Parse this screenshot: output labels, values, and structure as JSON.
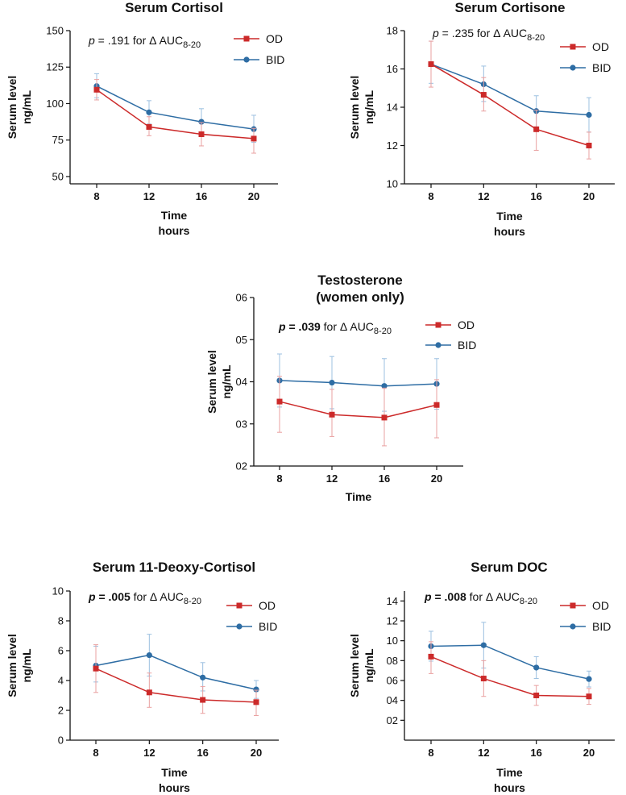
{
  "colors": {
    "OD": "#cc2a2a",
    "BID": "#2e6da4",
    "OD_err": "#e9a0a0",
    "BID_err": "#9cc0e0"
  },
  "chart_data": [
    {
      "id": "cortisol",
      "type": "line",
      "title": "Serum Cortisol",
      "title2": "",
      "ylabel": [
        "Serum level",
        "ng/mL"
      ],
      "ylabel_style": [
        "bold",
        "bold"
      ],
      "xlabel": [
        "Time",
        "hours"
      ],
      "x": [
        8,
        12,
        16,
        20
      ],
      "xticks": [
        "8",
        "12",
        "16",
        "20"
      ],
      "ylim": [
        45,
        150
      ],
      "yticks": [
        50,
        75,
        100,
        125,
        150
      ],
      "ytick_labels": [
        "50",
        "75",
        "100",
        "125",
        "150"
      ],
      "annotation": {
        "p": "p",
        "value": " = .191",
        "rest": " for Δ AUC",
        "sub": "8-20",
        "bold": false
      },
      "series": [
        {
          "name": "OD",
          "values": [
            109.5,
            84,
            79,
            76
          ],
          "err_up": [
            7,
            7,
            8,
            7
          ],
          "err_down": [
            7,
            6,
            8,
            10
          ]
        },
        {
          "name": "BID",
          "values": [
            112,
            94,
            87.5,
            82.5
          ],
          "err_up": [
            8.5,
            8,
            9,
            9.5
          ],
          "err_down": [
            8,
            8,
            9,
            9
          ]
        }
      ]
    },
    {
      "id": "cortisone",
      "type": "line",
      "title": "Serum Cortisone",
      "title2": "",
      "ylabel": [
        "Serum level",
        "ng/mL"
      ],
      "ylabel_style": [
        "bold",
        "bold"
      ],
      "xlabel": [
        "Time",
        "hours"
      ],
      "x": [
        8,
        12,
        16,
        20
      ],
      "xticks": [
        "8",
        "12",
        "16",
        "20"
      ],
      "ylim": [
        10,
        18
      ],
      "yticks": [
        10,
        12,
        14,
        16,
        18
      ],
      "ytick_labels": [
        "10",
        "12",
        "14",
        "16",
        "18"
      ],
      "annotation": {
        "p": "p",
        "value": " = .235",
        "rest": " for Δ AUC",
        "sub": "8-20",
        "bold": false
      },
      "series": [
        {
          "name": "OD",
          "values": [
            16.25,
            14.65,
            12.85,
            12.0
          ],
          "err_up": [
            1.2,
            0.9,
            1.0,
            0.7
          ],
          "err_down": [
            1.2,
            0.85,
            1.1,
            0.7
          ]
        },
        {
          "name": "BID",
          "values": [
            16.25,
            15.2,
            13.8,
            13.6
          ],
          "err_up": [
            1.2,
            0.95,
            0.8,
            0.9
          ],
          "err_down": [
            1.0,
            0.9,
            0.9,
            0.9
          ]
        }
      ]
    },
    {
      "id": "testosterone",
      "type": "line",
      "title": "Testosterone",
      "title2": "(women only)",
      "ylabel": [
        "Serum level",
        "ng/mL"
      ],
      "ylabel_style": [
        "bold",
        "normal"
      ],
      "xlabel": [
        "Time",
        ""
      ],
      "x": [
        8,
        12,
        16,
        20
      ],
      "xticks": [
        "8",
        "12",
        "16",
        "20"
      ],
      "ylim": [
        0.2,
        0.6
      ],
      "yticks": [
        0.2,
        0.3,
        0.4,
        0.5,
        0.6
      ],
      "ytick_labels": [
        "02",
        "03",
        "04",
        "05",
        "06"
      ],
      "annotation": {
        "p": "p",
        "value": " = .039",
        "rest": " for Δ AUC",
        "sub": "8-20",
        "bold": true
      },
      "series": [
        {
          "name": "OD",
          "values": [
            0.353,
            0.322,
            0.315,
            0.345
          ],
          "err_up": [
            0.06,
            0.06,
            0.07,
            0.06
          ],
          "err_down": [
            0.073,
            0.052,
            0.067,
            0.078
          ]
        },
        {
          "name": "BID",
          "values": [
            0.403,
            0.398,
            0.39,
            0.395
          ],
          "err_up": [
            0.063,
            0.062,
            0.065,
            0.06
          ],
          "err_down": [
            0.063,
            0.062,
            0.06,
            0.06
          ]
        }
      ]
    },
    {
      "id": "deoxycortisol",
      "type": "line",
      "title": "Serum 11-Deoxy-Cortisol",
      "title2": "",
      "ylabel": [
        "Serum level",
        "ng/mL"
      ],
      "ylabel_style": [
        "bold",
        "bold"
      ],
      "xlabel": [
        "Time",
        "hours"
      ],
      "x": [
        8,
        12,
        16,
        20
      ],
      "xticks": [
        "8",
        "12",
        "16",
        "20"
      ],
      "ylim": [
        0,
        10
      ],
      "yticks": [
        0,
        2,
        4,
        6,
        8,
        10
      ],
      "ytick_labels": [
        "0",
        "2",
        "4",
        "6",
        "8",
        "10"
      ],
      "annotation": {
        "p": "p",
        "value": " = .005",
        "rest": " for Δ AUC",
        "sub": "8-20",
        "bold": true
      },
      "series": [
        {
          "name": "OD",
          "values": [
            4.8,
            3.2,
            2.7,
            2.55
          ],
          "err_up": [
            1.6,
            1.3,
            0.9,
            0.8
          ],
          "err_down": [
            1.6,
            1.0,
            0.9,
            0.9
          ]
        },
        {
          "name": "BID",
          "values": [
            5.0,
            5.7,
            4.2,
            3.4
          ],
          "err_up": [
            1.3,
            1.4,
            1.0,
            0.6
          ],
          "err_down": [
            1.1,
            1.4,
            0.9,
            0.6
          ]
        }
      ]
    },
    {
      "id": "doc",
      "type": "line",
      "title": "Serum DOC",
      "title2": "",
      "ylabel": [
        "Serum level",
        "ng/mL"
      ],
      "ylabel_style": [
        "bold",
        "bold"
      ],
      "xlabel": [
        "Time",
        "hours"
      ],
      "x": [
        8,
        12,
        16,
        20
      ],
      "xticks": [
        "8",
        "12",
        "16",
        "20"
      ],
      "ylim": [
        0,
        1.5
      ],
      "yticks": [
        0.2,
        0.4,
        0.6,
        0.8,
        1.0,
        1.2,
        1.4
      ],
      "ytick_labels": [
        "02",
        "04",
        "06",
        "08",
        "10",
        "12",
        "14"
      ],
      "annotation": {
        "p": "p",
        "value": " = .008",
        "rest": " for Δ AUC",
        "sub": "8-20",
        "bold": true
      },
      "series": [
        {
          "name": "OD",
          "values": [
            0.84,
            0.62,
            0.45,
            0.44
          ],
          "err_up": [
            0.15,
            0.18,
            0.1,
            0.08
          ],
          "err_down": [
            0.17,
            0.18,
            0.1,
            0.08
          ]
        },
        {
          "name": "BID",
          "values": [
            0.945,
            0.955,
            0.73,
            0.615
          ],
          "err_up": [
            0.15,
            0.23,
            0.11,
            0.08
          ],
          "err_down": [
            0.15,
            0.23,
            0.11,
            0.08
          ]
        }
      ]
    }
  ]
}
